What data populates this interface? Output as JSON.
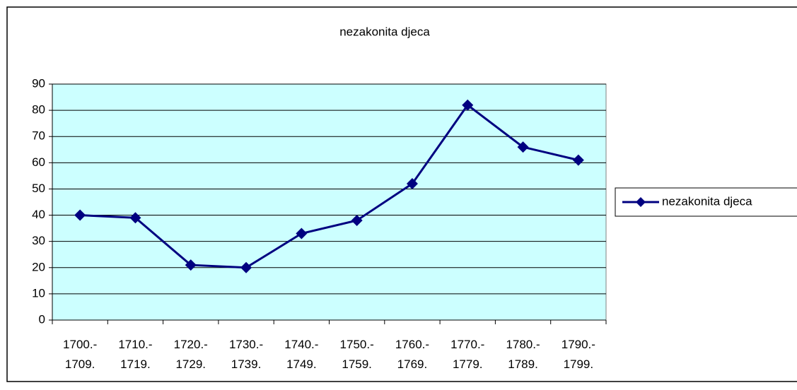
{
  "chart_data": {
    "type": "line",
    "title": "nezakonita djeca",
    "categories": [
      "1700.- 1709.",
      "1710.- 1719.",
      "1720.- 1729.",
      "1730.- 1739.",
      "1740.- 1749.",
      "1750.- 1759.",
      "1760.- 1769.",
      "1770.- 1779.",
      "1780.- 1789.",
      "1790.- 1799."
    ],
    "series": [
      {
        "name": "nezakonita djeca",
        "color": "#000080",
        "values": [
          40,
          39,
          21,
          20,
          33,
          38,
          52,
          82,
          66,
          61
        ]
      }
    ],
    "ylim": [
      0,
      90
    ],
    "yticks": [
      0,
      10,
      20,
      30,
      40,
      50,
      60,
      70,
      80,
      90
    ],
    "grid": true,
    "legend": "right",
    "plot_background": "#ccffff"
  }
}
